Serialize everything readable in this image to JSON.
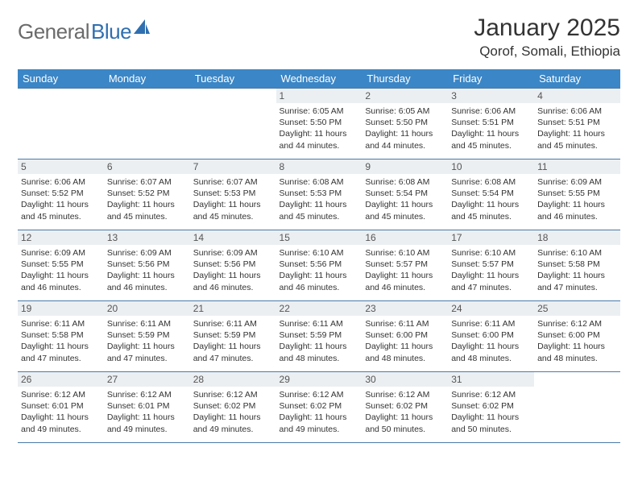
{
  "logo": {
    "text_gen": "General",
    "text_blue": "Blue"
  },
  "title": "January 2025",
  "location": "Qorof, Somali, Ethiopia",
  "colors": {
    "header_bg": "#3b86c6",
    "header_text": "#ffffff",
    "rule": "#4a7aa8",
    "daynum_bg": "#eceff2",
    "logo_gray": "#6b6b6b",
    "logo_blue": "#2f6fb0",
    "body_text": "#333333"
  },
  "typography": {
    "title_size_pt": 22,
    "location_size_pt": 13,
    "header_cell_size_pt": 10,
    "daynum_size_pt": 9,
    "info_size_pt": 8
  },
  "day_headers": [
    "Sunday",
    "Monday",
    "Tuesday",
    "Wednesday",
    "Thursday",
    "Friday",
    "Saturday"
  ],
  "first_weekday_index": 3,
  "days": [
    {
      "n": 1,
      "sr": "6:05 AM",
      "ss": "5:50 PM",
      "dl": "11 hours and 44 minutes."
    },
    {
      "n": 2,
      "sr": "6:05 AM",
      "ss": "5:50 PM",
      "dl": "11 hours and 44 minutes."
    },
    {
      "n": 3,
      "sr": "6:06 AM",
      "ss": "5:51 PM",
      "dl": "11 hours and 45 minutes."
    },
    {
      "n": 4,
      "sr": "6:06 AM",
      "ss": "5:51 PM",
      "dl": "11 hours and 45 minutes."
    },
    {
      "n": 5,
      "sr": "6:06 AM",
      "ss": "5:52 PM",
      "dl": "11 hours and 45 minutes."
    },
    {
      "n": 6,
      "sr": "6:07 AM",
      "ss": "5:52 PM",
      "dl": "11 hours and 45 minutes."
    },
    {
      "n": 7,
      "sr": "6:07 AM",
      "ss": "5:53 PM",
      "dl": "11 hours and 45 minutes."
    },
    {
      "n": 8,
      "sr": "6:08 AM",
      "ss": "5:53 PM",
      "dl": "11 hours and 45 minutes."
    },
    {
      "n": 9,
      "sr": "6:08 AM",
      "ss": "5:54 PM",
      "dl": "11 hours and 45 minutes."
    },
    {
      "n": 10,
      "sr": "6:08 AM",
      "ss": "5:54 PM",
      "dl": "11 hours and 45 minutes."
    },
    {
      "n": 11,
      "sr": "6:09 AM",
      "ss": "5:55 PM",
      "dl": "11 hours and 46 minutes."
    },
    {
      "n": 12,
      "sr": "6:09 AM",
      "ss": "5:55 PM",
      "dl": "11 hours and 46 minutes."
    },
    {
      "n": 13,
      "sr": "6:09 AM",
      "ss": "5:56 PM",
      "dl": "11 hours and 46 minutes."
    },
    {
      "n": 14,
      "sr": "6:09 AM",
      "ss": "5:56 PM",
      "dl": "11 hours and 46 minutes."
    },
    {
      "n": 15,
      "sr": "6:10 AM",
      "ss": "5:56 PM",
      "dl": "11 hours and 46 minutes."
    },
    {
      "n": 16,
      "sr": "6:10 AM",
      "ss": "5:57 PM",
      "dl": "11 hours and 46 minutes."
    },
    {
      "n": 17,
      "sr": "6:10 AM",
      "ss": "5:57 PM",
      "dl": "11 hours and 47 minutes."
    },
    {
      "n": 18,
      "sr": "6:10 AM",
      "ss": "5:58 PM",
      "dl": "11 hours and 47 minutes."
    },
    {
      "n": 19,
      "sr": "6:11 AM",
      "ss": "5:58 PM",
      "dl": "11 hours and 47 minutes."
    },
    {
      "n": 20,
      "sr": "6:11 AM",
      "ss": "5:59 PM",
      "dl": "11 hours and 47 minutes."
    },
    {
      "n": 21,
      "sr": "6:11 AM",
      "ss": "5:59 PM",
      "dl": "11 hours and 47 minutes."
    },
    {
      "n": 22,
      "sr": "6:11 AM",
      "ss": "5:59 PM",
      "dl": "11 hours and 48 minutes."
    },
    {
      "n": 23,
      "sr": "6:11 AM",
      "ss": "6:00 PM",
      "dl": "11 hours and 48 minutes."
    },
    {
      "n": 24,
      "sr": "6:11 AM",
      "ss": "6:00 PM",
      "dl": "11 hours and 48 minutes."
    },
    {
      "n": 25,
      "sr": "6:12 AM",
      "ss": "6:00 PM",
      "dl": "11 hours and 48 minutes."
    },
    {
      "n": 26,
      "sr": "6:12 AM",
      "ss": "6:01 PM",
      "dl": "11 hours and 49 minutes."
    },
    {
      "n": 27,
      "sr": "6:12 AM",
      "ss": "6:01 PM",
      "dl": "11 hours and 49 minutes."
    },
    {
      "n": 28,
      "sr": "6:12 AM",
      "ss": "6:02 PM",
      "dl": "11 hours and 49 minutes."
    },
    {
      "n": 29,
      "sr": "6:12 AM",
      "ss": "6:02 PM",
      "dl": "11 hours and 49 minutes."
    },
    {
      "n": 30,
      "sr": "6:12 AM",
      "ss": "6:02 PM",
      "dl": "11 hours and 50 minutes."
    },
    {
      "n": 31,
      "sr": "6:12 AM",
      "ss": "6:02 PM",
      "dl": "11 hours and 50 minutes."
    }
  ],
  "labels": {
    "sunrise": "Sunrise:",
    "sunset": "Sunset:",
    "daylight": "Daylight:"
  }
}
